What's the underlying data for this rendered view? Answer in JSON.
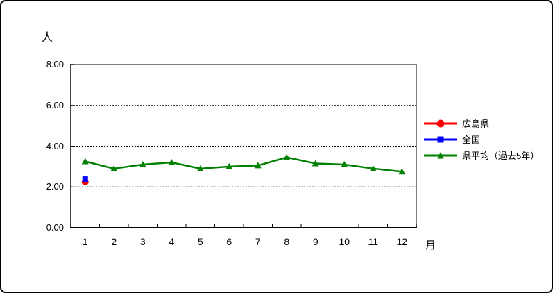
{
  "window": {
    "background": "#ffffff",
    "border_color": "#000000"
  },
  "chart_data": {
    "type": "line",
    "title": "",
    "ylabel": "人",
    "xlabel": "月",
    "ylim": [
      0,
      8
    ],
    "ytick_values": [
      8,
      6,
      4,
      2,
      0
    ],
    "ytick_labels": [
      "8.00",
      "6.00",
      "4.00",
      "2.00",
      "0.00"
    ],
    "categories": [
      "1",
      "2",
      "3",
      "4",
      "5",
      "6",
      "7",
      "8",
      "9",
      "10",
      "11",
      "12"
    ],
    "series": [
      {
        "name": "広島県",
        "color": "#ff0000",
        "marker": "circle",
        "values": [
          2.25,
          null,
          null,
          null,
          null,
          null,
          null,
          null,
          null,
          null,
          null,
          null
        ]
      },
      {
        "name": "全国",
        "color": "#0000ff",
        "marker": "square",
        "values": [
          2.38,
          null,
          null,
          null,
          null,
          null,
          null,
          null,
          null,
          null,
          null,
          null
        ]
      },
      {
        "name": "県平均（過去5年）",
        "color": "#008000",
        "marker": "triangle",
        "values": [
          3.25,
          2.9,
          3.1,
          3.2,
          2.9,
          3.0,
          3.05,
          3.45,
          3.15,
          3.1,
          2.9,
          2.75
        ]
      }
    ],
    "grid": {
      "show": true,
      "color": "#000000",
      "style": "dashed"
    },
    "frame": {
      "axis_color": "#000000",
      "outer_color": "#808080"
    },
    "legend_position": "right"
  }
}
